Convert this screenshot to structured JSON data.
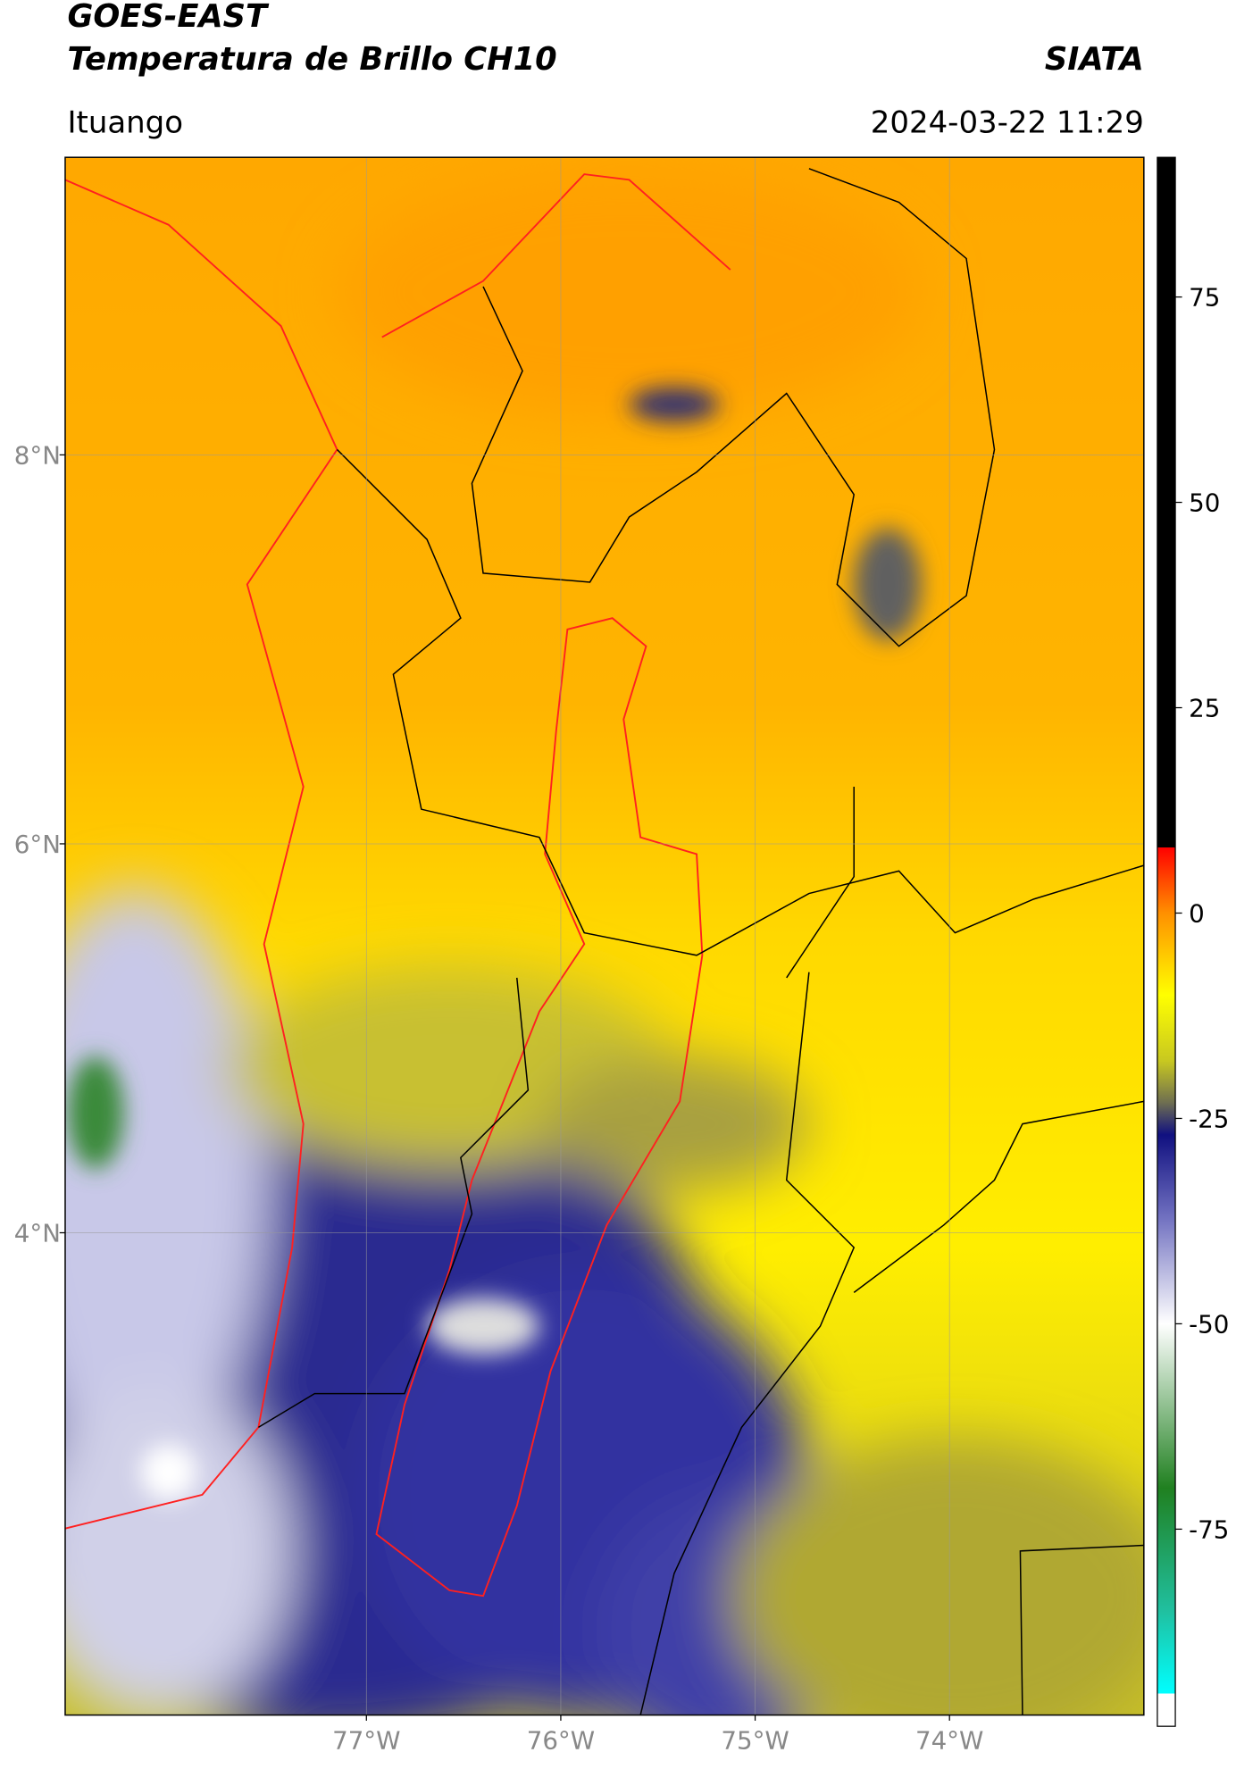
{
  "header": {
    "title": "GOES-EAST",
    "subtitle": "Temperatura de Brillo CH10",
    "source": "SIATA",
    "region": "Ituango",
    "datetime": "2024-03-22 11:29"
  },
  "map": {
    "latlim": [
      1.52,
      9.53
    ],
    "lonlim": [
      -78.55,
      -73.0
    ],
    "latticks": [
      {
        "value": 8,
        "label": "8°N"
      },
      {
        "value": 6,
        "label": "6°N"
      },
      {
        "value": 4,
        "label": "4°N"
      }
    ],
    "lonticks": [
      {
        "value": -77,
        "label": "77°W"
      },
      {
        "value": -76,
        "label": "76°W"
      },
      {
        "value": -75,
        "label": "75°W"
      },
      {
        "value": -74,
        "label": "74°W"
      }
    ],
    "grid": true
  },
  "colorbar": {
    "lim": [
      -99,
      92
    ],
    "ticks": [
      75,
      50,
      25,
      0,
      -25,
      -50,
      -75
    ],
    "stops": [
      {
        "value": 92,
        "color": "#000000"
      },
      {
        "value": 8,
        "color": "#000000"
      },
      {
        "value": 8,
        "color": "#ff0000"
      },
      {
        "value": 0,
        "color": "#ff9000"
      },
      {
        "value": -10,
        "color": "#ffff00"
      },
      {
        "value": -18,
        "color": "#c8c820"
      },
      {
        "value": -23,
        "color": "#707050"
      },
      {
        "value": -27,
        "color": "#101080"
      },
      {
        "value": -37,
        "color": "#7070c0"
      },
      {
        "value": -50,
        "color": "#ffffff"
      },
      {
        "value": -60,
        "color": "#90c090"
      },
      {
        "value": -70,
        "color": "#208020"
      },
      {
        "value": -85,
        "color": "#20c0a0"
      },
      {
        "value": -95,
        "color": "#00ffff"
      },
      {
        "value": -95,
        "color": "#ffffff"
      },
      {
        "value": -99,
        "color": "#ffffff"
      }
    ]
  }
}
